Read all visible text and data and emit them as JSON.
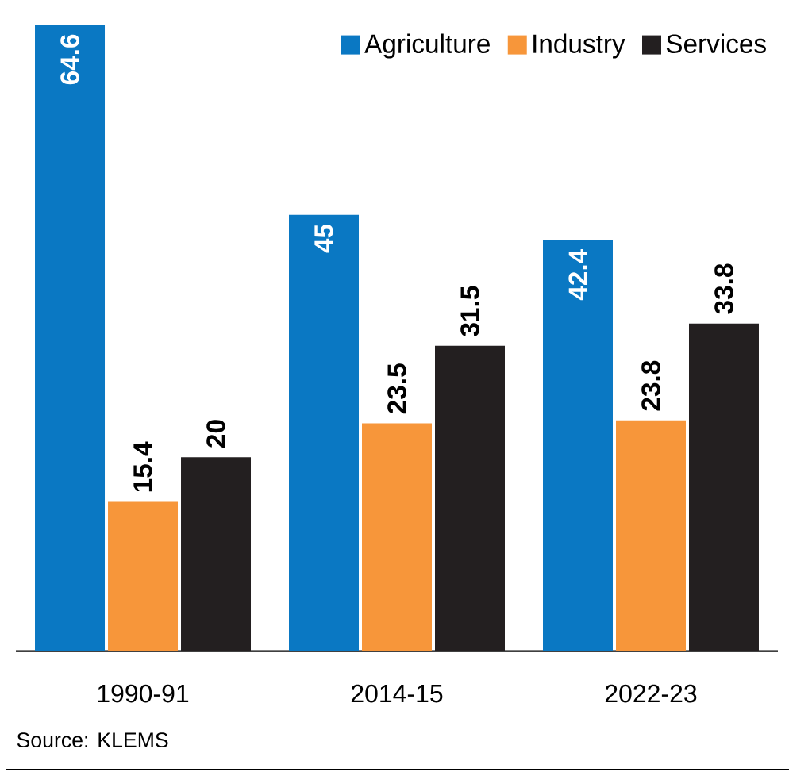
{
  "chart_data": {
    "type": "bar",
    "categories": [
      "1990-91",
      "2014-15",
      "2022-23"
    ],
    "series": [
      {
        "name": "Agriculture",
        "color": "#0a78c3",
        "values": [
          64.6,
          45,
          42.4
        ]
      },
      {
        "name": "Industry",
        "color": "#f7963a",
        "values": [
          15.4,
          23.5,
          23.8
        ]
      },
      {
        "name": "Services",
        "color": "#231f20",
        "values": [
          20,
          31.5,
          33.8
        ]
      }
    ],
    "data_labels": true,
    "legend": "top right",
    "tick_labels": "x",
    "grid": false,
    "annotations": [
      "Source: KLEMS"
    ]
  }
}
